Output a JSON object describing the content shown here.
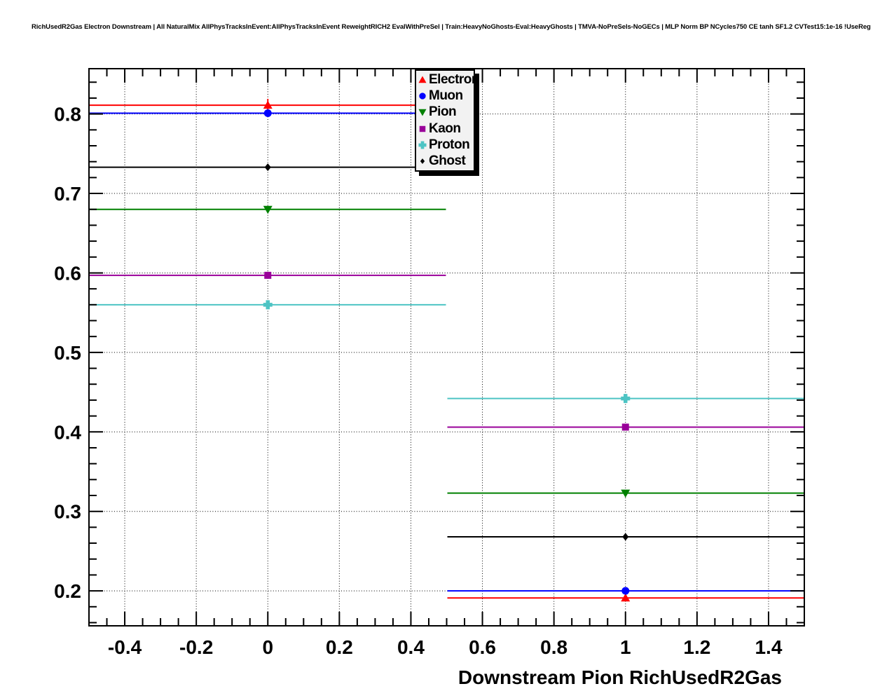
{
  "title": "RichUsedR2Gas Electron Downstream | All NaturalMix AllPhysTracksInEvent:AllPhysTracksInEvent ReweightRICH2 EvalWithPreSel | Train:HeavyNoGhosts-Eval:HeavyGhosts | TMVA-NoPreSels-NoGECs | MLP Norm BP NCycles750 CE tanh SF1.2 CVTest15:1e-16 !UseReg",
  "chart_data": {
    "type": "scatter",
    "x": [
      0,
      1
    ],
    "x_bin_halfwidth": 0.5,
    "series": [
      {
        "name": "Electron",
        "color": "#ff0000",
        "marker": "triangle-up",
        "values": [
          0.811,
          0.191
        ],
        "yerr": [
          0.008,
          0.004
        ]
      },
      {
        "name": "Muon",
        "color": "#0000ff",
        "marker": "circle",
        "values": [
          0.801,
          0.2
        ],
        "yerr": [
          0.002,
          0.002
        ]
      },
      {
        "name": "Pion",
        "color": "#008000",
        "marker": "triangle-down",
        "values": [
          0.68,
          0.323
        ],
        "yerr": [
          0.002,
          0.002
        ]
      },
      {
        "name": "Kaon",
        "color": "#990099",
        "marker": "square",
        "values": [
          0.597,
          0.406
        ],
        "yerr": [
          0.002,
          0.002
        ]
      },
      {
        "name": "Proton",
        "color": "#4dc4c4",
        "marker": "cross",
        "values": [
          0.56,
          0.442
        ],
        "yerr": [
          0.002,
          0.002
        ]
      },
      {
        "name": "Ghost",
        "color": "#000000",
        "marker": "diamond",
        "values": [
          0.733,
          0.268
        ],
        "yerr": [
          0.002,
          0.002
        ]
      }
    ],
    "xlabel": "Downstream Pion RichUsedR2Gas",
    "ylabel": "",
    "xlim": [
      -0.5,
      1.5
    ],
    "ylim": [
      0.156,
      0.857
    ],
    "x_major_ticks": [
      -0.4,
      -0.2,
      0,
      0.2,
      0.4,
      0.6,
      0.8,
      1,
      1.2,
      1.4
    ],
    "x_tick_labels": [
      "-0.4",
      "-0.2",
      "0",
      "0.2",
      "0.4",
      "0.6",
      "0.8",
      "1",
      "1.2",
      "1.4"
    ],
    "y_major_ticks": [
      0.2,
      0.3,
      0.4,
      0.5,
      0.6,
      0.7,
      0.8
    ],
    "y_tick_labels": [
      "0.2",
      "0.3",
      "0.4",
      "0.5",
      "0.6",
      "0.7",
      "0.8"
    ],
    "x_minor_step": 0.05,
    "y_minor_step": 0.02,
    "grid": true,
    "grid_style": "dotted",
    "legend_position": "top-center",
    "background": "#ffffff"
  }
}
